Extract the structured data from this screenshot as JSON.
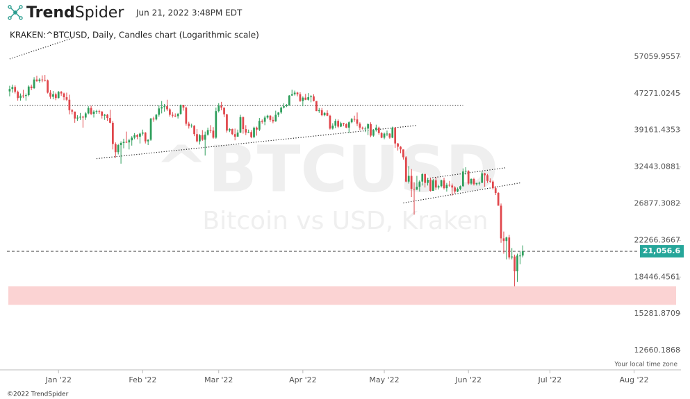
{
  "chart_data": {
    "type": "candlestick",
    "brand": {
      "bold": "Trend",
      "light": "Spider"
    },
    "timestamp": "Jun 21, 2022 3:48PM EDT",
    "title": "KRAKEN:^BTCUSD, Daily, Candles chart (Logarithmic scale)",
    "watermark": "^BTCUSD",
    "watermark_subtitle": "Bitcoin vs USD, Kraken",
    "timezone_note": "Your local time zone",
    "copyright": "©2022 TrendSpider",
    "log_scale": true,
    "grid": false,
    "up_color": "#2e9e5b",
    "down_color": "#e0464b",
    "xlim": [
      -1,
      246
    ],
    "xticks": [
      {
        "value": 18,
        "label": "Jan '22"
      },
      {
        "value": 49,
        "label": "Feb '22"
      },
      {
        "value": 77,
        "label": "Mar '22"
      },
      {
        "value": 108,
        "label": "Apr '22"
      },
      {
        "value": 138,
        "label": "May '22"
      },
      {
        "value": 169,
        "label": "Jun '22"
      },
      {
        "value": 199,
        "label": "Jul '22"
      },
      {
        "value": 230,
        "label": "Aug '22"
      }
    ],
    "ylim": [
      11585,
      66250
    ],
    "yticks": [
      57059.9557,
      47271.0245,
      39161.4353,
      32443.0881,
      26877.3082,
      22266.3667,
      18446.4561,
      15281.8709,
      12660.1868
    ],
    "open": [
      47800,
      48400,
      48900,
      47700,
      46200,
      46800,
      46700,
      46900,
      49000,
      48600,
      50800,
      50400,
      50800,
      50700,
      50600,
      47500,
      46500,
      47100,
      46200,
      47700,
      47300,
      46400,
      45800,
      43400,
      43100,
      41600,
      41800,
      42000,
      41800,
      42700,
      43900,
      42600,
      43100,
      43200,
      43100,
      42200,
      42400,
      41700,
      40700,
      36500,
      35000,
      36300,
      36700,
      36900,
      36800,
      37200,
      37700,
      38200,
      37900,
      38500,
      38700,
      37000,
      37300,
      41600,
      41400,
      42400,
      43800,
      44100,
      44300,
      43600,
      42400,
      42200,
      42100,
      42600,
      44600,
      44000,
      40500,
      40000,
      40100,
      38400,
      37000,
      38200,
      37300,
      38300,
      39200,
      39100,
      37700,
      43200,
      44400,
      44000,
      42500,
      39100,
      39400,
      38400,
      37900,
      38700,
      41900,
      39400,
      38700,
      38800,
      37800,
      39700,
      39300,
      41100,
      40900,
      41800,
      42200,
      41300,
      41000,
      42400,
      42900,
      44000,
      44300,
      44500,
      46800,
      47100,
      47500,
      47100,
      45500,
      46300,
      45800,
      46400,
      46600,
      45500,
      43200,
      43400,
      42300,
      42800,
      42200,
      39500,
      40100,
      41100,
      39900,
      40600,
      40400,
      39700,
      40800,
      41500,
      41400,
      40500,
      39700,
      39500,
      39500,
      40400,
      38100,
      39200,
      39700,
      38600,
      37700,
      38500,
      38500,
      37700,
      39700,
      36600,
      36000,
      35500,
      34100,
      30100,
      31000,
      29000,
      28900,
      29300,
      30100,
      31300,
      29900,
      30400,
      28700,
      30300,
      29200,
      29400,
      30300,
      29100,
      29600,
      29500,
      29200,
      28600,
      29000,
      29400,
      31700,
      31800,
      29800,
      30500,
      29700,
      29900,
      29900,
      31400,
      31100,
      30200,
      30100,
      29100,
      28400,
      26600,
      22500,
      22200,
      22600,
      20400,
      20500,
      19000,
      20600,
      20600
    ],
    "high": [
      49200,
      49500,
      49300,
      48000,
      47300,
      48200,
      47300,
      49300,
      49500,
      51400,
      51800,
      51200,
      51900,
      52000,
      50800,
      48100,
      47900,
      47500,
      47900,
      47900,
      47500,
      47500,
      47000,
      43700,
      43100,
      42300,
      42800,
      42200,
      43000,
      44300,
      44400,
      43400,
      43500,
      43500,
      43200,
      42600,
      42600,
      43500,
      41100,
      36800,
      36500,
      37000,
      37500,
      38900,
      37500,
      38000,
      38600,
      38400,
      38700,
      39300,
      38800,
      37400,
      41700,
      42000,
      42600,
      44500,
      45500,
      44800,
      45800,
      43900,
      43000,
      42700,
      42800,
      44700,
      44600,
      44200,
      40900,
      40500,
      40200,
      39400,
      38400,
      39200,
      38900,
      39700,
      40200,
      39800,
      44000,
      45000,
      45300,
      44000,
      42600,
      39600,
      39500,
      39500,
      39300,
      42400,
      42000,
      40200,
      39300,
      39200,
      39900,
      39900,
      41700,
      41400,
      42200,
      42400,
      42300,
      42000,
      43300,
      43000,
      44200,
      45000,
      44800,
      46900,
      48200,
      48000,
      47700,
      47600,
      46600,
      47200,
      47400,
      46900,
      47100,
      45500,
      43900,
      43900,
      43000,
      43400,
      42400,
      40600,
      41500,
      41400,
      40900,
      40700,
      40600,
      41000,
      41700,
      42200,
      42900,
      40800,
      39900,
      39900,
      40600,
      40800,
      39400,
      40300,
      39900,
      38800,
      38700,
      39100,
      38600,
      39900,
      39800,
      36700,
      36100,
      35500,
      34300,
      32600,
      32100,
      30000,
      31000,
      30300,
      31400,
      31300,
      30700,
      30700,
      30500,
      30800,
      29600,
      30400,
      30700,
      29900,
      30200,
      29800,
      29400,
      29200,
      29500,
      32200,
      32400,
      31900,
      30600,
      30700,
      29900,
      30100,
      31700,
      31500,
      31300,
      30600,
      30300,
      29400,
      28500,
      26900,
      23300,
      22700,
      22900,
      21400,
      20700,
      20800,
      21000,
      21700
    ],
    "low": [
      46600,
      47500,
      47300,
      45600,
      45600,
      46200,
      45600,
      46600,
      48100,
      48400,
      50200,
      50000,
      50100,
      50300,
      47300,
      46000,
      45900,
      45700,
      46100,
      46700,
      45700,
      45500,
      42500,
      42500,
      40700,
      41100,
      41300,
      39700,
      41300,
      42500,
      42300,
      41800,
      42600,
      42600,
      41600,
      41300,
      41100,
      40600,
      35500,
      34000,
      34600,
      33000,
      35700,
      36700,
      35500,
      36200,
      37400,
      37400,
      36600,
      38100,
      36600,
      36300,
      37100,
      40900,
      41200,
      42000,
      42700,
      43100,
      43200,
      42000,
      41800,
      41900,
      41600,
      42400,
      43300,
      40100,
      39500,
      39700,
      38000,
      36800,
      36400,
      37100,
      34400,
      38100,
      38600,
      37500,
      37500,
      42900,
      43400,
      41900,
      38700,
      38800,
      38200,
      37200,
      37900,
      38600,
      38500,
      38200,
      38600,
      37600,
      37600,
      38100,
      39000,
      40500,
      40200,
      41500,
      40900,
      40600,
      40900,
      41900,
      42600,
      43800,
      44100,
      44400,
      46700,
      46800,
      46600,
      45300,
      44300,
      45700,
      45600,
      45200,
      45400,
      43200,
      42800,
      42100,
      42100,
      42100,
      39300,
      39300,
      39600,
      39600,
      39800,
      40000,
      39600,
      38600,
      40600,
      40900,
      40000,
      39200,
      39300,
      38800,
      38200,
      37800,
      37900,
      38900,
      38300,
      37600,
      37400,
      38000,
      37500,
      37600,
      35800,
      35300,
      34800,
      33700,
      30000,
      29800,
      27800,
      25400,
      28800,
      28600,
      29500,
      29200,
      29500,
      28600,
      28700,
      28800,
      28900,
      29200,
      28900,
      28600,
      29300,
      28000,
      28300,
      28500,
      28800,
      29300,
      31200,
      29600,
      29600,
      29500,
      29500,
      29500,
      29900,
      29300,
      29900,
      29900,
      28900,
      28100,
      26600,
      22000,
      20800,
      20200,
      20200,
      20200,
      17600,
      18000,
      19700,
      20400
    ],
    "close": [
      48400,
      48900,
      47700,
      46200,
      46800,
      46700,
      46900,
      49000,
      48600,
      50800,
      50400,
      50800,
      50700,
      50600,
      47500,
      46500,
      47100,
      46200,
      47700,
      47300,
      46400,
      45800,
      43400,
      43100,
      41600,
      41800,
      42000,
      41800,
      42700,
      43900,
      42600,
      43100,
      43200,
      43100,
      42200,
      42400,
      41700,
      40700,
      36500,
      35000,
      36300,
      36700,
      36900,
      36800,
      37200,
      37700,
      38200,
      37900,
      38500,
      38700,
      37000,
      37300,
      41600,
      41400,
      42400,
      43800,
      44100,
      44300,
      43600,
      42400,
      42200,
      42100,
      42600,
      44600,
      44000,
      40500,
      40000,
      40100,
      38400,
      37000,
      38200,
      37300,
      38300,
      39200,
      39100,
      37700,
      43200,
      44400,
      44000,
      42500,
      39100,
      39400,
      38400,
      37900,
      38700,
      41900,
      39400,
      38700,
      38800,
      37800,
      39700,
      39300,
      41100,
      40900,
      41800,
      42200,
      41300,
      41000,
      42400,
      42900,
      44000,
      44300,
      44500,
      46800,
      47100,
      47500,
      47100,
      45500,
      46300,
      45800,
      46400,
      46600,
      45500,
      43200,
      43400,
      42300,
      42800,
      42200,
      39500,
      40100,
      41100,
      39900,
      40600,
      40400,
      39700,
      40800,
      41500,
      41400,
      40500,
      39700,
      39500,
      39500,
      40400,
      38100,
      39200,
      39700,
      38600,
      37700,
      38500,
      38500,
      37700,
      39700,
      36600,
      36000,
      35500,
      34100,
      30100,
      31000,
      29000,
      28900,
      29300,
      30100,
      31300,
      29900,
      30400,
      28700,
      30300,
      29200,
      29400,
      30300,
      29100,
      29600,
      29500,
      29200,
      28600,
      29000,
      29400,
      31700,
      31800,
      29800,
      30500,
      29700,
      29900,
      29900,
      31400,
      31100,
      30200,
      30100,
      29100,
      28400,
      26600,
      22500,
      22200,
      22600,
      20400,
      20500,
      19000,
      20600,
      20600,
      21056.6
    ],
    "last_price": {
      "value": 21056.6,
      "label": "21,056.6",
      "color": "#26a69a"
    },
    "zone": {
      "low": 16000,
      "high": 17600,
      "color": "#fbd3d3"
    },
    "trendlines": [
      {
        "x": [
          0,
          23
        ],
        "y": [
          56450,
          62800
        ]
      },
      {
        "x": [
          0,
          167
        ],
        "y": [
          44500,
          44500
        ]
      },
      {
        "x": [
          32,
          150
        ],
        "y": [
          33860,
          40150
        ]
      },
      {
        "x": [
          153,
          183
        ],
        "y": [
          30545,
          32330
        ]
      },
      {
        "x": [
          145,
          188
        ],
        "y": [
          26975,
          29900
        ]
      }
    ]
  }
}
